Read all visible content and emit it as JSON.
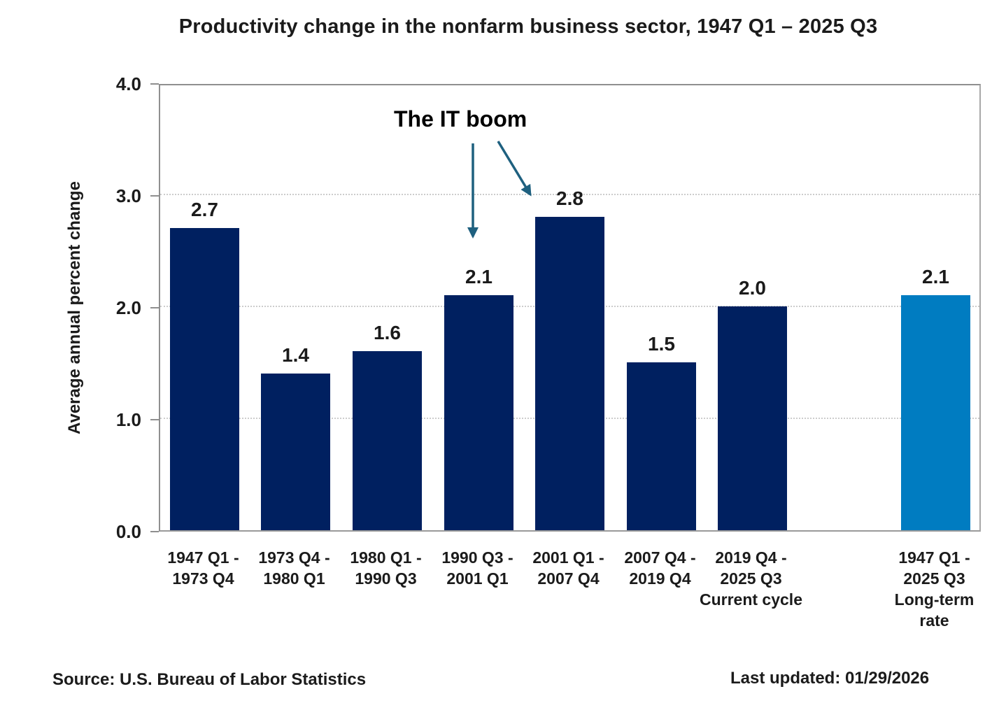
{
  "chart_data": {
    "type": "bar",
    "title": "Productivity change in the nonfarm business sector, 1947 Q1 – 2025 Q3",
    "ylabel": "Average annual percent change",
    "ylim": [
      0.0,
      4.0
    ],
    "ytick_labels": [
      "0.0",
      "1.0",
      "2.0",
      "3.0",
      "4.0"
    ],
    "grid": "horizontal dotted gridlines at 1.0, 2.0, 3.0",
    "legend": "none",
    "categories": [
      "1947 Q1 - 1973 Q4",
      "1973 Q4 - 1980 Q1",
      "1980 Q1 - 1990 Q3",
      "1990 Q3 - 2001 Q1",
      "2001 Q1 - 2007 Q4",
      "2007 Q4 - 2019 Q4",
      "2019 Q4 - 2025 Q3 Current cycle",
      "1947 Q1 - 2025 Q3 Long-term rate"
    ],
    "category_label_lines": [
      [
        "1947 Q1 -",
        "1973 Q4"
      ],
      [
        "1973 Q4 -",
        "1980 Q1"
      ],
      [
        "1980 Q1 -",
        "1990 Q3"
      ],
      [
        "1990 Q3 -",
        "2001 Q1"
      ],
      [
        "2001 Q1 -",
        "2007 Q4"
      ],
      [
        "2007 Q4 -",
        "2019 Q4"
      ],
      [
        "2019 Q4 -",
        "2025 Q3",
        "Current cycle"
      ],
      [
        "1947 Q1 -",
        "2025 Q3",
        "Long-term",
        "rate"
      ]
    ],
    "values": [
      2.7,
      1.4,
      1.6,
      2.1,
      2.8,
      1.5,
      2.0,
      2.1
    ],
    "bar_value_labels": [
      "2.7",
      "1.4",
      "1.6",
      "2.1",
      "2.8",
      "1.5",
      "2.0",
      "2.1"
    ],
    "bar_color": "#002060",
    "highlight_bar_color": "#007cc1",
    "highlight_index": 7,
    "annotation": {
      "text": "The IT boom",
      "arrow_color": "#1e607f",
      "points_to": [
        "1990 Q3 - 2001 Q1",
        "2001 Q1 - 2007 Q4"
      ]
    }
  },
  "footer": {
    "source": "Source: U.S. Bureau of Labor Statistics",
    "last_updated": "Last updated: 01/29/2026"
  }
}
